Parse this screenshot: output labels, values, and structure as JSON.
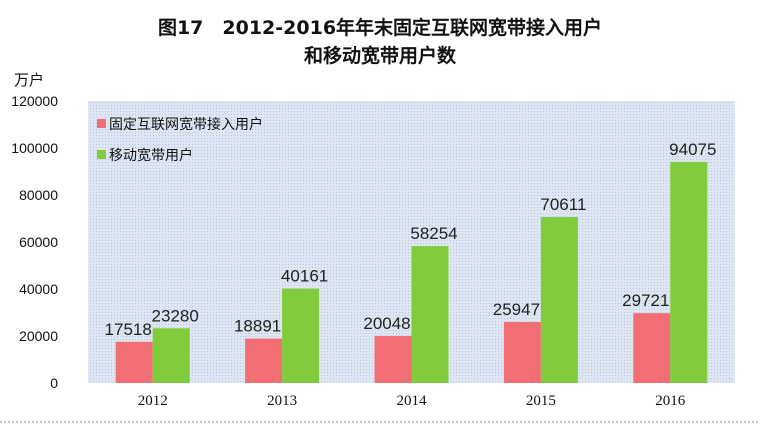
{
  "chart_data": {
    "type": "bar",
    "title_line1": "图17　2012-2016年年末固定互联网宽带接入用户",
    "title_line2": "和移动宽带用户数",
    "y_unit": "万户",
    "categories": [
      "2012",
      "2013",
      "2014",
      "2015",
      "2016"
    ],
    "series": [
      {
        "name": "固定互联网宽带接入用户",
        "values": [
          17518,
          18891,
          20048,
          25947,
          29721
        ],
        "color": "#f06e74"
      },
      {
        "name": "移动宽带用户",
        "values": [
          23280,
          40161,
          58254,
          70611,
          94075
        ],
        "color": "#80cc3c"
      }
    ],
    "ylim": [
      0,
      120000
    ],
    "yticks": [
      "0",
      "20000",
      "40000",
      "60000",
      "80000",
      "100000",
      "120000"
    ],
    "legend_position": "top-left",
    "background_color": "#dde6f2"
  }
}
